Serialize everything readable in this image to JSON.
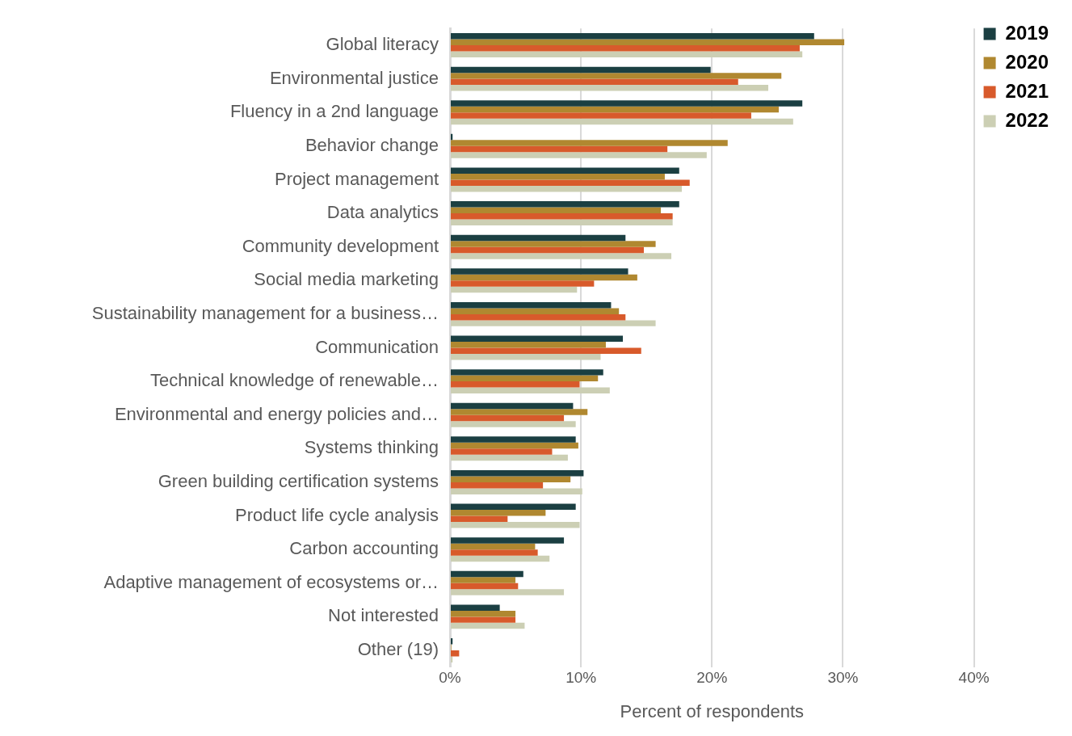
{
  "chart_data": {
    "type": "bar",
    "orientation": "horizontal",
    "xlabel": "Percent of respondents",
    "categories": [
      "Global literacy",
      "Environmental justice",
      "Fluency in a 2nd language",
      "Behavior change",
      "Project management",
      "Data analytics",
      "Community development",
      "Social media marketing",
      "Sustainability management for a business…",
      "Communication",
      "Technical knowledge of renewable…",
      "Environmental and energy policies and…",
      "Systems thinking",
      "Green building certification systems",
      "Product life cycle analysis",
      "Carbon accounting",
      "Adaptive management of ecosystems or…",
      "Not interested",
      "Other (19)"
    ],
    "series": [
      {
        "name": "2019",
        "color": "#1b3f42",
        "values": [
          27.8,
          19.9,
          26.9,
          0.2,
          17.5,
          17.5,
          13.4,
          13.6,
          12.3,
          13.2,
          11.7,
          9.4,
          9.6,
          10.2,
          9.6,
          8.7,
          5.6,
          3.8,
          0.2
        ]
      },
      {
        "name": "2020",
        "color": "#b08830",
        "values": [
          30.1,
          25.3,
          25.1,
          21.2,
          16.4,
          16.1,
          15.7,
          14.3,
          12.9,
          11.9,
          11.3,
          10.5,
          9.8,
          9.2,
          7.3,
          6.5,
          5.0,
          5.0,
          0.1
        ]
      },
      {
        "name": "2021",
        "color": "#d85a2b",
        "values": [
          26.7,
          22.0,
          23.0,
          16.6,
          18.3,
          17.0,
          14.8,
          11.0,
          13.4,
          14.6,
          9.9,
          8.7,
          7.8,
          7.1,
          4.4,
          6.7,
          5.2,
          5.0,
          0.7
        ]
      },
      {
        "name": "2022",
        "color": "#cccfb4",
        "values": [
          26.9,
          24.3,
          26.2,
          19.6,
          17.7,
          17.0,
          16.9,
          9.7,
          15.7,
          11.5,
          12.2,
          9.6,
          9.0,
          10.1,
          9.9,
          7.6,
          8.7,
          5.7,
          0.2
        ]
      }
    ],
    "xlim": [
      0,
      40
    ],
    "xticks": [
      {
        "value": 0,
        "label": "0%"
      },
      {
        "value": 10,
        "label": "10%"
      },
      {
        "value": 20,
        "label": "20%"
      },
      {
        "value": 30,
        "label": "30%"
      },
      {
        "value": 40,
        "label": "40%"
      }
    ],
    "grid": "x",
    "legend": "top right"
  }
}
